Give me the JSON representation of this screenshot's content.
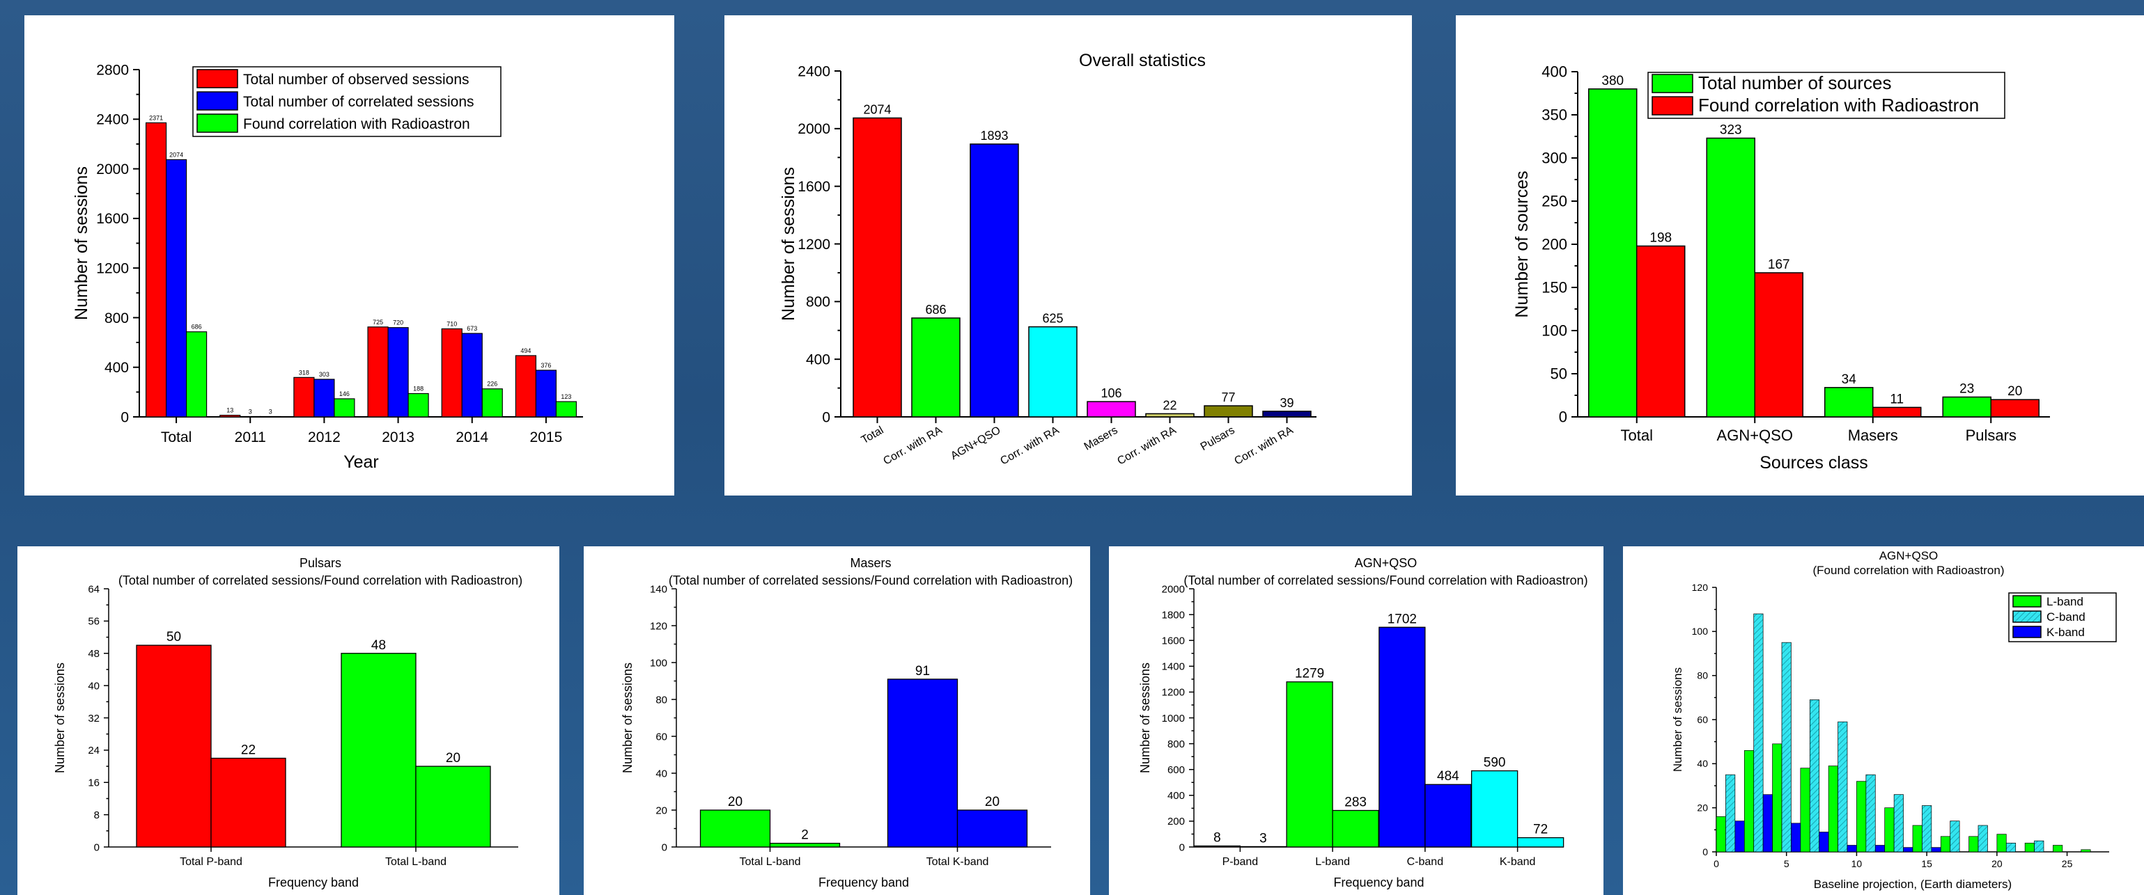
{
  "chart_data": [
    {
      "type": "bar",
      "title": "",
      "xlabel": "Year",
      "ylabel": "Number of sessions",
      "ylim": [
        0,
        2800
      ],
      "yticks": [
        0,
        400,
        800,
        1200,
        1600,
        2000,
        2400,
        2800
      ],
      "categories": [
        "Total",
        "2011",
        "2012",
        "2013",
        "2014",
        "2015"
      ],
      "series": [
        {
          "name": "Total number of observed sessions",
          "color": "#ff0000",
          "values": [
            2371,
            13,
            318,
            725,
            710,
            494
          ]
        },
        {
          "name": "Total number of correlated sessions",
          "color": "#0000ff",
          "values": [
            2074,
            3,
            303,
            720,
            673,
            376
          ]
        },
        {
          "name": "Found correlation with Radioastron",
          "color": "#00ff00",
          "values": [
            686,
            3,
            146,
            188,
            226,
            123
          ]
        }
      ],
      "legend": "top-right"
    },
    {
      "type": "bar",
      "title": "Overall statistics",
      "xlabel": "",
      "ylabel": "Number of sessions",
      "ylim": [
        0,
        2400
      ],
      "yticks": [
        0,
        400,
        800,
        1200,
        1600,
        2000,
        2400
      ],
      "categories": [
        "Total",
        "Corr. with RA",
        "AGN+QSO",
        "Corr. with RA",
        "Masers",
        "Corr. with RA",
        "Pulsars",
        "Corr. with RA"
      ],
      "values": [
        2074,
        686,
        1893,
        625,
        106,
        22,
        77,
        39
      ],
      "colors": [
        "#ff0000",
        "#00ff00",
        "#0000ff",
        "#00ffff",
        "#ff00ff",
        "#cccc66",
        "#808000",
        "#000080"
      ]
    },
    {
      "type": "bar",
      "title": "",
      "xlabel": "Sources class",
      "ylabel": "Number of sources",
      "ylim": [
        0,
        400
      ],
      "yticks": [
        0,
        50,
        100,
        150,
        200,
        250,
        300,
        350,
        400
      ],
      "categories": [
        "Total",
        "AGN+QSO",
        "Masers",
        "Pulsars"
      ],
      "series": [
        {
          "name": "Total number of sources",
          "color": "#00ff00",
          "values": [
            380,
            323,
            34,
            23
          ]
        },
        {
          "name": "Found correlation with Radioastron",
          "color": "#ff0000",
          "values": [
            198,
            167,
            11,
            20
          ]
        }
      ],
      "legend": "top-left"
    },
    {
      "type": "bar",
      "title": "Pulsars",
      "subtitle": "(Total number of correlated sessions/Found correlation with Radioastron)",
      "xlabel": "Frequency band",
      "ylabel": "Number of sessions",
      "ylim": [
        0,
        64
      ],
      "yticks": [
        0,
        8,
        16,
        24,
        32,
        40,
        48,
        56,
        64
      ],
      "categories": [
        "Total P-band",
        "Total L-band"
      ],
      "pairs": [
        {
          "color": "#ff0000",
          "values": [
            50,
            22
          ]
        },
        {
          "color": "#00ff00",
          "values": [
            48,
            20
          ]
        }
      ]
    },
    {
      "type": "bar",
      "title": "Masers",
      "subtitle": "(Total number of correlated sessions/Found correlation with Radioastron)",
      "xlabel": "Frequency band",
      "ylabel": "Number of sessions",
      "ylim": [
        0,
        140
      ],
      "yticks": [
        0,
        20,
        40,
        60,
        80,
        100,
        120,
        140
      ],
      "categories": [
        "Total L-band",
        "Total K-band"
      ],
      "pairs": [
        {
          "color": "#00ff00",
          "values": [
            20,
            2
          ]
        },
        {
          "color": "#0000ff",
          "values": [
            91,
            20
          ]
        }
      ]
    },
    {
      "type": "bar",
      "title": "AGN+QSO",
      "subtitle": "(Total number of correlated sessions/Found correlation with Radioastron)",
      "xlabel": "Frequency band",
      "ylabel": "Number of sessions",
      "ylim": [
        0,
        2000
      ],
      "yticks": [
        0,
        200,
        400,
        600,
        800,
        1000,
        1200,
        1400,
        1600,
        1800,
        2000
      ],
      "categories": [
        "P-band",
        "L-band",
        "C-band",
        "K-band"
      ],
      "pairs": [
        {
          "color": "#ff0000",
          "values": [
            8,
            3
          ]
        },
        {
          "color": "#00ff00",
          "values": [
            1279,
            283
          ]
        },
        {
          "color": "#0000ff",
          "values": [
            1702,
            484
          ]
        },
        {
          "color": "#00ffff",
          "values": [
            590,
            72
          ]
        }
      ]
    },
    {
      "type": "bar",
      "title": "AGN+QSO",
      "subtitle": "(Found correlation with Radioastron)",
      "xlabel": "Baseline projection, (Earth diameters)",
      "ylabel": "Number of sessions",
      "ylim": [
        0,
        120
      ],
      "xlim": [
        0,
        28
      ],
      "yticks": [
        0,
        20,
        40,
        60,
        80,
        100,
        120
      ],
      "xticks": [
        0,
        5,
        10,
        15,
        20,
        25
      ],
      "x": [
        1,
        3,
        5,
        7,
        9,
        11,
        13,
        15,
        17,
        19,
        21,
        23,
        25,
        27
      ],
      "series": [
        {
          "name": "L-band",
          "color": "#00ff00",
          "values": [
            16,
            46,
            49,
            38,
            39,
            32,
            20,
            12,
            7,
            7,
            8,
            4,
            3,
            1
          ]
        },
        {
          "name": "C-band",
          "color": "#33e5f0",
          "hatched": true,
          "values": [
            35,
            108,
            95,
            69,
            59,
            35,
            26,
            21,
            14,
            12,
            4,
            5,
            0,
            0
          ]
        },
        {
          "name": "K-band",
          "color": "#0000ff",
          "values": [
            14,
            26,
            13,
            9,
            3,
            3,
            2,
            2,
            0,
            0,
            0,
            0,
            0,
            0
          ]
        }
      ],
      "legend": "top-right"
    }
  ]
}
